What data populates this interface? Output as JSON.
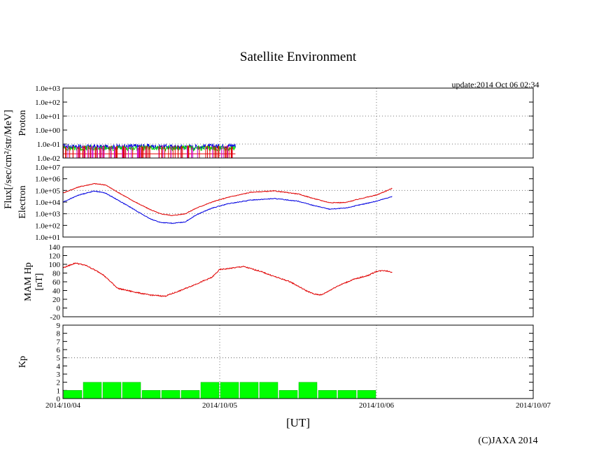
{
  "title": "Satellite Environment",
  "update_label": "update:2014 Oct 06 02:34",
  "shared_ylabel": "Flux[/sec/cm²/str/MeV]",
  "x_label": "[UT]",
  "copyright": "(C)JAXA 2014",
  "x_ticks": [
    "2014/10/04",
    "2014/10/05",
    "2014/10/06",
    "2014/10/07"
  ],
  "colors": {
    "red": "#e00000",
    "blue": "#0000e0",
    "green": "#00dd00",
    "magenta": "#cc00cc",
    "grid": "#777777",
    "kp_bar": "#00ff00",
    "kp_bar_edge": "#00aa00"
  },
  "chart_data": [
    {
      "type": "line",
      "name": "proton",
      "ylabel": "Proton",
      "yscale": "log",
      "ylim": [
        0.01,
        1000
      ],
      "yticks": [
        "1.0e+03",
        "1.0e+02",
        "1.0e+01",
        "1.0e+00",
        "1.0e-01",
        "1.0e-02"
      ],
      "xlim_days": [
        0,
        3
      ],
      "data_end_day": 1.1,
      "series": [
        {
          "name": "blue",
          "color": "blue",
          "x": [
            0,
            0.25,
            0.5,
            0.75,
            1.0,
            1.1
          ],
          "values": [
            0.07,
            0.06,
            0.07,
            0.06,
            0.07,
            0.08
          ]
        },
        {
          "name": "green",
          "color": "green",
          "x": [
            0,
            0.25,
            0.5,
            0.75,
            1.0,
            1.1
          ],
          "values": [
            0.05,
            0.05,
            0.05,
            0.05,
            0.05,
            0.05
          ]
        },
        {
          "name": "red",
          "color": "red",
          "x": [
            0,
            0.25,
            0.5,
            0.75,
            1.0,
            1.1
          ],
          "values": [
            0.02,
            0.02,
            0.02,
            0.02,
            0.02,
            0.02
          ]
        }
      ]
    },
    {
      "type": "line",
      "name": "electron",
      "ylabel": "Electron",
      "yscale": "log",
      "ylim": [
        10,
        10000000
      ],
      "yticks": [
        "1.0e+07",
        "1.0e+06",
        "1.0e+05",
        "1.0e+04",
        "1.0e+03",
        "1.0e+02",
        "1.0e+01"
      ],
      "xlim_days": [
        0,
        3
      ],
      "series": [
        {
          "name": "red",
          "color": "red",
          "x": [
            0,
            0.1,
            0.2,
            0.27,
            0.35,
            0.45,
            0.55,
            0.62,
            0.7,
            0.78,
            0.85,
            0.95,
            1.05,
            1.2,
            1.35,
            1.5,
            1.6,
            1.7,
            1.8,
            1.9,
            2.0,
            2.1
          ],
          "values": [
            60000,
            200000,
            380000,
            300000,
            70000,
            12000,
            2500,
            1000,
            700,
            1000,
            3000,
            10000,
            25000,
            70000,
            90000,
            50000,
            20000,
            9000,
            9000,
            20000,
            40000,
            150000
          ]
        },
        {
          "name": "blue",
          "color": "blue",
          "x": [
            0,
            0.1,
            0.2,
            0.27,
            0.35,
            0.45,
            0.55,
            0.62,
            0.7,
            0.78,
            0.85,
            0.95,
            1.05,
            1.2,
            1.35,
            1.5,
            1.6,
            1.7,
            1.8,
            1.9,
            2.0,
            2.1
          ],
          "values": [
            10000,
            40000,
            90000,
            60000,
            15000,
            2500,
            400,
            180,
            150,
            200,
            800,
            3000,
            7000,
            15000,
            20000,
            12000,
            5000,
            2500,
            3000,
            6000,
            12000,
            30000
          ]
        }
      ]
    },
    {
      "type": "line",
      "name": "mam",
      "ylabel": "MAM Hp",
      "ylabel2": "[nT]",
      "ylim": [
        -20,
        140
      ],
      "yticks": [
        "140",
        "120",
        "100",
        "80",
        "60",
        "40",
        "20",
        "0",
        "-20"
      ],
      "xlim_days": [
        0,
        3
      ],
      "series": [
        {
          "name": "red",
          "color": "red",
          "x": [
            0,
            0.08,
            0.15,
            0.25,
            0.35,
            0.45,
            0.55,
            0.65,
            0.75,
            0.85,
            0.95,
            1.0,
            1.05,
            1.15,
            1.25,
            1.35,
            1.45,
            1.55,
            1.6,
            1.65,
            1.75,
            1.85,
            1.95,
            2.0,
            2.05,
            2.1
          ],
          "values": [
            92,
            103,
            97,
            78,
            45,
            37,
            30,
            27,
            40,
            55,
            70,
            88,
            90,
            95,
            85,
            72,
            60,
            40,
            32,
            30,
            50,
            65,
            75,
            84,
            86,
            82
          ]
        }
      ]
    },
    {
      "type": "bar",
      "name": "kp",
      "ylabel": "Kp",
      "ylim": [
        0,
        9
      ],
      "yticks": [
        "9",
        "8",
        "7",
        "6",
        "5",
        "4",
        "3",
        "2",
        "1",
        "0"
      ],
      "bin_hours": 3,
      "values": [
        1,
        2,
        2,
        2,
        1,
        1,
        1,
        2,
        2,
        2,
        2,
        1,
        2,
        1,
        1,
        1
      ]
    }
  ]
}
